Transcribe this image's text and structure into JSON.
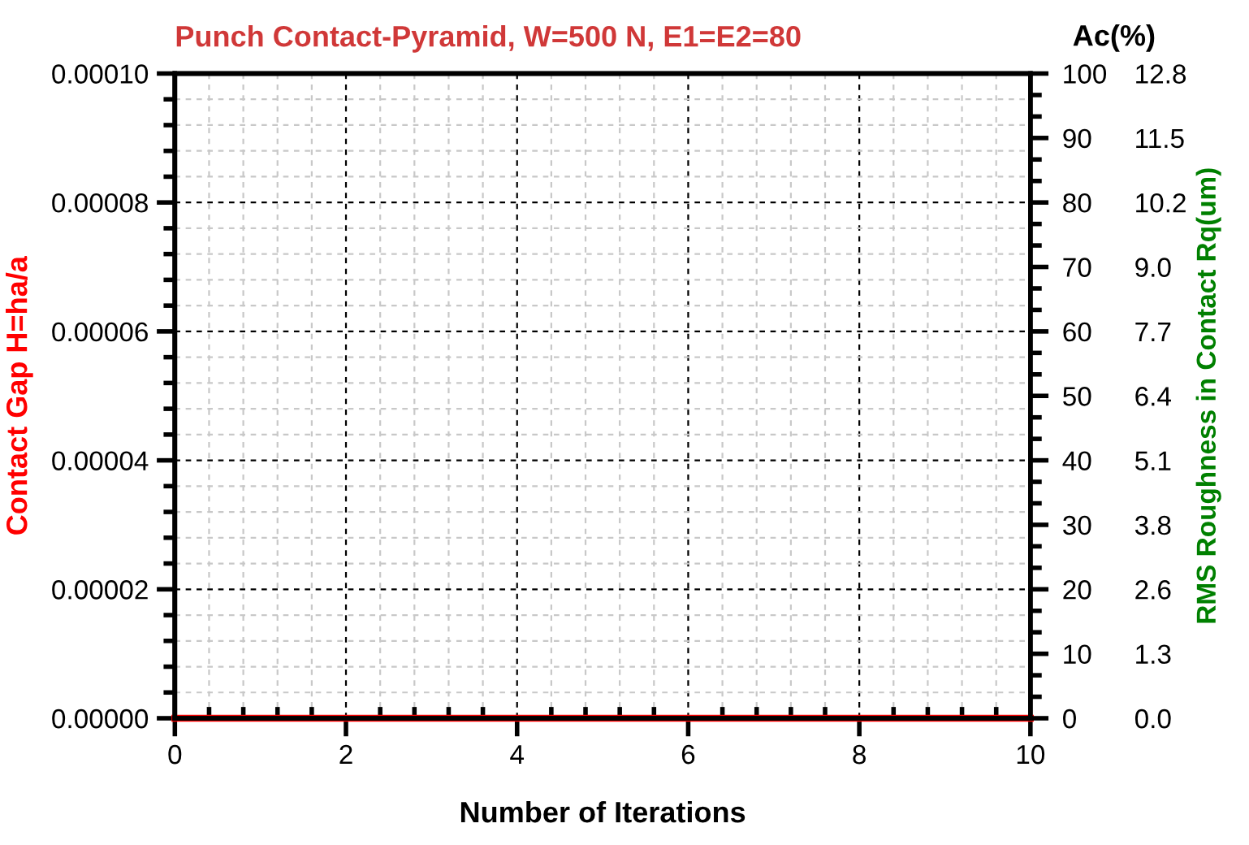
{
  "chart_data": {
    "type": "line",
    "title": "Punch Contact-Pyramid, W=500 N, E1=E2=80",
    "xlabel": "Number of Iterations",
    "ylabel": "Contact Gap H=ha/a",
    "y2label": "Ac(%)",
    "y3label": "RMS Roughness in Contact Rq(um)",
    "series": [
      {
        "color": "#ff0000",
        "x": [
          0,
          10
        ],
        "values": [
          0,
          0
        ]
      }
    ],
    "xlim": [
      0,
      10
    ],
    "xticks": [
      0,
      2,
      4,
      6,
      8,
      10
    ],
    "ylim": [
      0,
      0.0001
    ],
    "yticks": [
      {
        "value": 0,
        "label": "0.00000"
      },
      {
        "value": 2e-05,
        "label": "0.00002"
      },
      {
        "value": 4e-05,
        "label": "0.00004"
      },
      {
        "value": 6e-05,
        "label": "0.00006"
      },
      {
        "value": 8e-05,
        "label": "0.00008"
      },
      {
        "value": 0.0001,
        "label": "0.00010"
      }
    ],
    "y2lim": [
      0,
      100
    ],
    "y2ticks": [
      0,
      10,
      20,
      30,
      40,
      50,
      60,
      70,
      80,
      90,
      100
    ],
    "y3lim": [
      0,
      12.8
    ],
    "y3ticks": [
      {
        "value": 0,
        "label": "0.0"
      },
      {
        "value": 1.28,
        "label": "1.3"
      },
      {
        "value": 2.56,
        "label": "2.6"
      },
      {
        "value": 3.84,
        "label": "3.8"
      },
      {
        "value": 5.12,
        "label": "5.1"
      },
      {
        "value": 6.4,
        "label": "6.4"
      },
      {
        "value": 7.68,
        "label": "7.7"
      },
      {
        "value": 8.96,
        "label": "9.0"
      },
      {
        "value": 10.24,
        "label": "10.2"
      },
      {
        "value": 11.52,
        "label": "11.5"
      },
      {
        "value": 12.8,
        "label": "12.8"
      }
    ],
    "grid": true,
    "legend": false,
    "marker": "none",
    "line_style": "solid"
  }
}
